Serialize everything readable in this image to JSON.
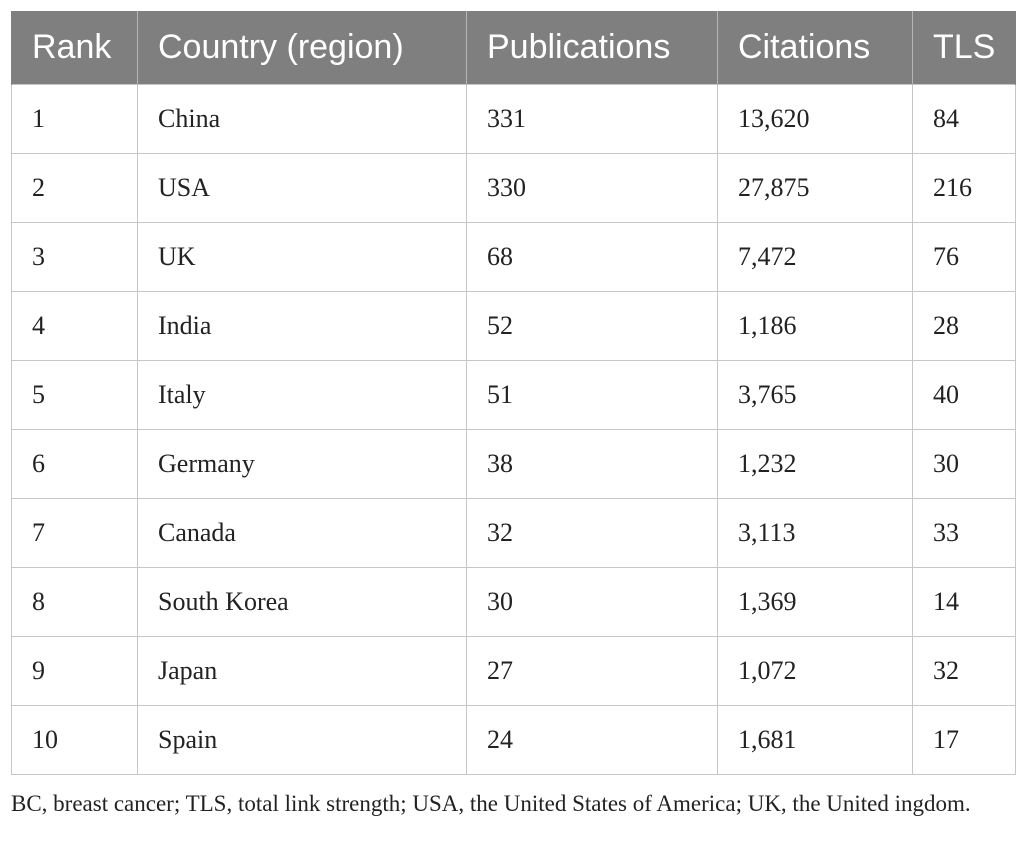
{
  "table": {
    "headers": [
      "Rank",
      "Country (region)",
      "Publications",
      "Citations",
      "TLS"
    ],
    "rows": [
      [
        "1",
        "China",
        "331",
        "13,620",
        "84"
      ],
      [
        "2",
        "USA",
        "330",
        "27,875",
        "216"
      ],
      [
        "3",
        "UK",
        "68",
        "7,472",
        "76"
      ],
      [
        "4",
        "India",
        "52",
        "1,186",
        "28"
      ],
      [
        "5",
        "Italy",
        "51",
        "3,765",
        "40"
      ],
      [
        "6",
        "Germany",
        "38",
        "1,232",
        "30"
      ],
      [
        "7",
        "Canada",
        "32",
        "3,113",
        "33"
      ],
      [
        "8",
        "South Korea",
        "30",
        "1,369",
        "14"
      ],
      [
        "9",
        "Japan",
        "27",
        "1,072",
        "32"
      ],
      [
        "10",
        "Spain",
        "24",
        "1,681",
        "17"
      ]
    ]
  },
  "footnote": "BC, breast cancer; TLS, total link strength; USA, the United States of America; UK, the United ingdom.",
  "colors": {
    "header_bg": "#7f7f7f",
    "header_text": "#ffffff",
    "grid_line": "#c6c6c6",
    "body_text": "#222222"
  }
}
